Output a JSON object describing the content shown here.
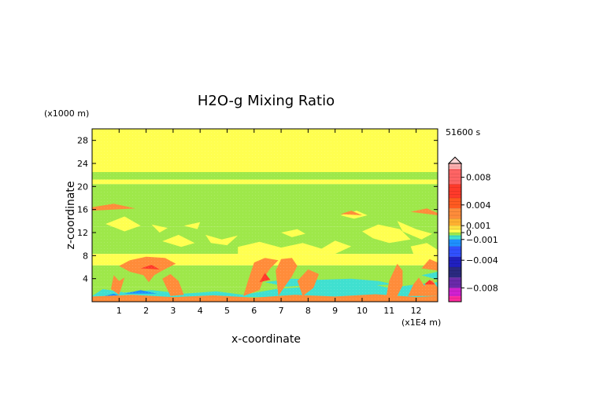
{
  "chart_data": {
    "type": "heatmap",
    "title": "H2O-g Mixing Ratio",
    "xlabel": "x-coordinate",
    "ylabel": "z-coordinate",
    "x_unit": "(x1E4 m)",
    "y_unit": "(x1000 m)",
    "time_label": "51600 s",
    "xlim": [
      0,
      12.8
    ],
    "ylim": [
      0,
      30
    ],
    "x_ticks": [
      1,
      2,
      3,
      4,
      5,
      6,
      7,
      8,
      9,
      10,
      11,
      12
    ],
    "y_ticks": [
      4,
      8,
      12,
      16,
      20,
      24,
      28
    ],
    "colorbar": {
      "range": [
        -0.01,
        0.01
      ],
      "tick_labels": [
        {
          "value": 0.008,
          "label": "0.008"
        },
        {
          "value": 0.004,
          "label": "0.004"
        },
        {
          "value": 0.001,
          "label": "0.001"
        },
        {
          "value": 0,
          "label": "0"
        },
        {
          "value": -0.001,
          "label": "−0.001"
        },
        {
          "value": -0.004,
          "label": "−0.004"
        },
        {
          "value": -0.008,
          "label": "−0.008"
        }
      ]
    },
    "field": {
      "layers": [
        {
          "z": [
            0,
            1
          ],
          "value": 0.002,
          "color": "#ff7f50"
        },
        {
          "z": [
            1,
            4
          ],
          "value": -0.002,
          "color": "#40e0d0"
        },
        {
          "z": [
            4,
            8
          ],
          "value": -0.0003,
          "color": "#9ee84a"
        },
        {
          "z": [
            8,
            12
          ],
          "value": 0.0003,
          "color": "#ffff50"
        },
        {
          "z": [
            12,
            20
          ],
          "value": -0.0003,
          "color": "#9ee84a"
        },
        {
          "z": [
            20,
            21
          ],
          "value": 0.0003,
          "color": "#ffff50"
        },
        {
          "z": [
            21,
            30
          ],
          "value": 0.0003,
          "color": "#ffff50"
        }
      ]
    }
  },
  "colors": {
    "yellow": "#ffff50",
    "green": "#9ee84a",
    "cyan": "#40e0d0",
    "blue": "#1e90ff",
    "orange": "#ff8c3a",
    "red": "#ff3a2a"
  }
}
